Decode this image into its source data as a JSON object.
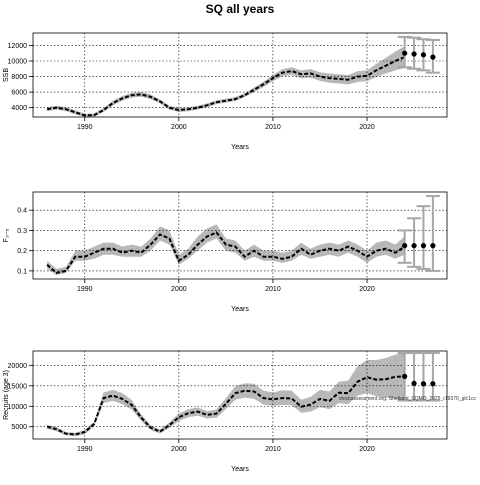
{
  "title": "SQ all years",
  "footnote": "stockassessment.org, Shetland_SQMO_2025_r19370_git:1cc",
  "colors": {
    "band": "#b8b8b8",
    "line": "#000000",
    "errorbar": "#a6a6a6",
    "grid": "#000000"
  },
  "chart_data": [
    {
      "type": "line",
      "ylabel": "SSB",
      "xlabel": "Years",
      "xlim": [
        1984.5,
        2028.5
      ],
      "ylim": [
        2800,
        13600
      ],
      "xticks": [
        1990,
        2000,
        2010,
        2020
      ],
      "yticks": [
        4000,
        6000,
        8000,
        10000,
        12000
      ],
      "grid": true,
      "x": [
        1986,
        1987,
        1988,
        1989,
        1990,
        1991,
        1992,
        1993,
        1994,
        1995,
        1996,
        1997,
        1998,
        1999,
        2000,
        2001,
        2002,
        2003,
        2004,
        2005,
        2006,
        2007,
        2008,
        2009,
        2010,
        2011,
        2012,
        2013,
        2014,
        2015,
        2016,
        2017,
        2018,
        2019,
        2020,
        2021,
        2022,
        2023,
        2024
      ],
      "values": [
        3800,
        4000,
        3800,
        3400,
        3000,
        3050,
        3700,
        4600,
        5200,
        5600,
        5700,
        5400,
        4800,
        4000,
        3700,
        3800,
        4000,
        4300,
        4700,
        4900,
        5100,
        5600,
        6300,
        7000,
        7800,
        8500,
        8700,
        8300,
        8400,
        8000,
        7800,
        7700,
        7600,
        8000,
        8100,
        8800,
        9400,
        10000,
        10500
      ],
      "lower": [
        3550,
        3750,
        3550,
        3150,
        2800,
        2850,
        3450,
        4300,
        4900,
        5300,
        5400,
        5100,
        4550,
        3750,
        3450,
        3550,
        3750,
        4050,
        4450,
        4650,
        4850,
        5350,
        6000,
        6650,
        7400,
        8050,
        8200,
        7800,
        7850,
        7450,
        7200,
        7100,
        7000,
        7300,
        7400,
        7950,
        8400,
        8800,
        9100
      ],
      "upper": [
        4050,
        4250,
        4050,
        3650,
        3200,
        3250,
        3950,
        4900,
        5500,
        5900,
        6000,
        5700,
        5050,
        4250,
        3950,
        4050,
        4250,
        4550,
        4950,
        5150,
        5350,
        5850,
        6600,
        7350,
        8200,
        8950,
        9200,
        8800,
        8950,
        8550,
        8400,
        8300,
        8200,
        8700,
        8800,
        9650,
        10400,
        11200,
        11900
      ],
      "forecast": {
        "x": [
          2024,
          2025,
          2026,
          2027
        ],
        "values": [
          11000,
          10900,
          10800,
          10500
        ],
        "lower": [
          9200,
          9000,
          8800,
          8500
        ],
        "upper": [
          13100,
          13000,
          12800,
          12700
        ]
      }
    },
    {
      "type": "line",
      "ylabel": "F₃₋₅",
      "xlabel": "Years",
      "xlim": [
        1984.5,
        2028.5
      ],
      "ylim": [
        0.06,
        0.49
      ],
      "xticks": [
        1990,
        2000,
        2010,
        2020
      ],
      "yticks": [
        0.1,
        0.2,
        0.3,
        0.4
      ],
      "ytick_labels": [
        "0.1",
        "0.2",
        "0.3",
        "0.4"
      ],
      "grid": true,
      "x": [
        1986,
        1987,
        1988,
        1989,
        1990,
        1991,
        1992,
        1993,
        1994,
        1995,
        1996,
        1997,
        1998,
        1999,
        2000,
        2001,
        2002,
        2003,
        2004,
        2005,
        2006,
        2007,
        2008,
        2009,
        2010,
        2011,
        2012,
        2013,
        2014,
        2015,
        2016,
        2017,
        2018,
        2019,
        2020,
        2021,
        2022,
        2023,
        2024
      ],
      "values": [
        0.13,
        0.09,
        0.1,
        0.17,
        0.17,
        0.19,
        0.21,
        0.21,
        0.19,
        0.2,
        0.19,
        0.23,
        0.28,
        0.26,
        0.15,
        0.18,
        0.23,
        0.27,
        0.29,
        0.23,
        0.22,
        0.17,
        0.2,
        0.17,
        0.17,
        0.16,
        0.17,
        0.21,
        0.18,
        0.2,
        0.21,
        0.2,
        0.22,
        0.2,
        0.17,
        0.2,
        0.21,
        0.19,
        0.22
      ],
      "lower": [
        0.11,
        0.08,
        0.09,
        0.15,
        0.15,
        0.16,
        0.18,
        0.18,
        0.17,
        0.17,
        0.17,
        0.2,
        0.25,
        0.23,
        0.13,
        0.16,
        0.2,
        0.24,
        0.26,
        0.2,
        0.19,
        0.15,
        0.17,
        0.15,
        0.15,
        0.14,
        0.15,
        0.18,
        0.16,
        0.17,
        0.18,
        0.17,
        0.19,
        0.17,
        0.14,
        0.17,
        0.18,
        0.16,
        0.18
      ],
      "upper": [
        0.15,
        0.11,
        0.12,
        0.2,
        0.2,
        0.22,
        0.24,
        0.24,
        0.22,
        0.23,
        0.22,
        0.26,
        0.32,
        0.3,
        0.18,
        0.21,
        0.27,
        0.31,
        0.33,
        0.26,
        0.25,
        0.2,
        0.23,
        0.2,
        0.2,
        0.19,
        0.2,
        0.24,
        0.21,
        0.23,
        0.24,
        0.23,
        0.25,
        0.23,
        0.2,
        0.24,
        0.25,
        0.23,
        0.27
      ],
      "forecast": {
        "x": [
          2024,
          2025,
          2026,
          2027
        ],
        "values": [
          0.225,
          0.225,
          0.225,
          0.225
        ],
        "lower": [
          0.14,
          0.12,
          0.11,
          0.1
        ],
        "upper": [
          0.3,
          0.36,
          0.42,
          0.47
        ]
      }
    },
    {
      "type": "line",
      "ylabel": "Recruits (age 3)",
      "xlabel": "Years",
      "xlim": [
        1984.5,
        2028.5
      ],
      "ylim": [
        2000,
        23500
      ],
      "xticks": [
        1990,
        2000,
        2010,
        2020
      ],
      "yticks": [
        5000,
        10000,
        15000,
        20000
      ],
      "grid": true,
      "x": [
        1986,
        1987,
        1988,
        1989,
        1990,
        1991,
        1992,
        1993,
        1994,
        1995,
        1996,
        1997,
        1998,
        1999,
        2000,
        2001,
        2002,
        2003,
        2004,
        2005,
        2006,
        2007,
        2008,
        2009,
        2010,
        2011,
        2012,
        2013,
        2014,
        2015,
        2016,
        2017,
        2018,
        2019,
        2020,
        2021,
        2022,
        2023,
        2024
      ],
      "values": [
        5000,
        4400,
        3300,
        3100,
        3700,
        5700,
        12000,
        12600,
        11800,
        10300,
        7200,
        4800,
        3800,
        5400,
        7300,
        8300,
        8700,
        7900,
        8200,
        10600,
        13200,
        13800,
        13600,
        12000,
        11700,
        12000,
        11900,
        9900,
        10400,
        11800,
        11300,
        13300,
        13200,
        16000,
        17100,
        16500,
        16600,
        17200,
        17300
      ],
      "lower": [
        4500,
        3900,
        2900,
        2700,
        3200,
        5100,
        10800,
        11300,
        10500,
        9200,
        6400,
        4200,
        3300,
        4700,
        6400,
        7300,
        7700,
        7000,
        7200,
        9300,
        11600,
        12100,
        11800,
        10400,
        10100,
        10300,
        10200,
        8400,
        8700,
        9800,
        9300,
        10800,
        10500,
        12600,
        13200,
        12400,
        12100,
        11900,
        11400
      ],
      "upper": [
        5500,
        4900,
        3700,
        3500,
        4200,
        6300,
        13400,
        14000,
        13200,
        11500,
        8000,
        5400,
        4300,
        6100,
        8200,
        9300,
        9700,
        8800,
        9200,
        12000,
        14900,
        15600,
        15500,
        13800,
        13400,
        13900,
        13800,
        11600,
        12300,
        14000,
        13600,
        16000,
        16300,
        19800,
        21300,
        21300,
        21800,
        22600,
        23200
      ],
      "forecast": {
        "x": [
          2024,
          2025,
          2026,
          2027
        ],
        "values": [
          17300,
          15600,
          15500,
          15500
        ],
        "lower": [
          11400,
          11400,
          11400,
          11400
        ],
        "upper": [
          23000,
          23000,
          23000,
          23000
        ]
      }
    }
  ]
}
